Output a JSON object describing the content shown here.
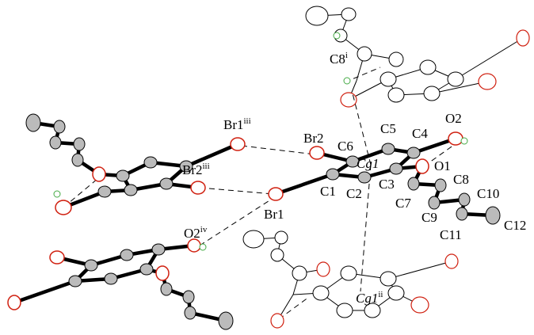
{
  "labels": [
    {
      "text": "Br1",
      "sup": "iii"
    },
    {
      "text": "Br2"
    },
    {
      "text": "C6"
    },
    {
      "text": "C5"
    },
    {
      "text": "C4"
    },
    {
      "text": "O2"
    },
    {
      "text": "Cg1"
    },
    {
      "text": "Br2",
      "sup": "iii"
    },
    {
      "text": "C1"
    },
    {
      "text": "C2"
    },
    {
      "text": "C3"
    },
    {
      "text": "O1"
    },
    {
      "text": "C8"
    },
    {
      "text": "C7"
    },
    {
      "text": "C10"
    },
    {
      "text": "C9"
    },
    {
      "text": "C12"
    },
    {
      "text": "C11"
    },
    {
      "text": "Br1"
    },
    {
      "text": "O2",
      "sup": "iv"
    },
    {
      "text": "C8",
      "sup": "i"
    },
    {
      "text": "Cg1",
      "sup": "ii"
    }
  ]
}
